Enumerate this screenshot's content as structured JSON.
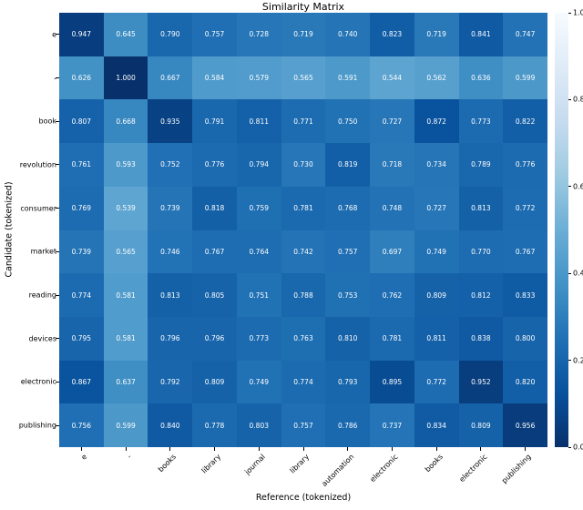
{
  "chart_data": {
    "type": "heatmap",
    "title": "Similarity Matrix",
    "xlabel": "Reference (tokenized)",
    "ylabel": "Candidate (tokenized)",
    "colormap": "Blues",
    "vmin": 0.0,
    "vmax": 1.0,
    "x_categories": [
      "e",
      "-",
      "books",
      "library",
      "journal",
      "library",
      "automation",
      "electronic",
      "books",
      "electronic",
      "publishing"
    ],
    "y_categories": [
      "e",
      "-",
      "book",
      "revolution",
      "consumer",
      "market",
      "reading",
      "devices",
      "electronic",
      "publishing"
    ],
    "values": [
      [
        0.947,
        0.645,
        0.79,
        0.757,
        0.728,
        0.719,
        0.74,
        0.823,
        0.719,
        0.841,
        0.747
      ],
      [
        0.626,
        1.0,
        0.667,
        0.584,
        0.579,
        0.565,
        0.591,
        0.544,
        0.562,
        0.636,
        0.599
      ],
      [
        0.807,
        0.668,
        0.935,
        0.791,
        0.811,
        0.771,
        0.75,
        0.727,
        0.872,
        0.773,
        0.822
      ],
      [
        0.761,
        0.593,
        0.752,
        0.776,
        0.794,
        0.73,
        0.819,
        0.718,
        0.734,
        0.789,
        0.776
      ],
      [
        0.769,
        0.539,
        0.739,
        0.818,
        0.759,
        0.781,
        0.768,
        0.748,
        0.727,
        0.813,
        0.772
      ],
      [
        0.739,
        0.565,
        0.746,
        0.767,
        0.764,
        0.742,
        0.757,
        0.697,
        0.749,
        0.77,
        0.767
      ],
      [
        0.774,
        0.581,
        0.813,
        0.805,
        0.751,
        0.788,
        0.753,
        0.762,
        0.809,
        0.812,
        0.833
      ],
      [
        0.795,
        0.581,
        0.796,
        0.796,
        0.773,
        0.763,
        0.81,
        0.781,
        0.811,
        0.838,
        0.8
      ],
      [
        0.867,
        0.637,
        0.792,
        0.809,
        0.749,
        0.774,
        0.793,
        0.895,
        0.772,
        0.952,
        0.82
      ],
      [
        0.756,
        0.599,
        0.84,
        0.778,
        0.803,
        0.757,
        0.786,
        0.737,
        0.834,
        0.809,
        0.956
      ]
    ],
    "colorbar_ticks": [
      "1.0",
      "0.8",
      "0.6",
      "0.4",
      "0.2",
      "0.0"
    ]
  }
}
